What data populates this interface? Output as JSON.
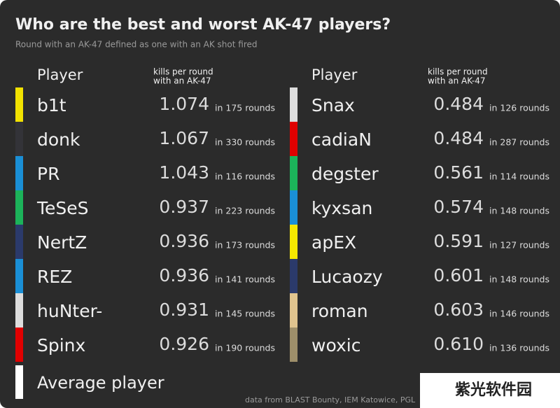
{
  "title": "Who are the best and worst AK-47 players?",
  "subtitle": "Round with an AK-47 defined as one with an AK shot fired",
  "tables": [
    {
      "header": {
        "player": "Player",
        "metric": [
          "kills per round",
          "with an AK-47"
        ]
      },
      "rows": [
        {
          "name": "b1t",
          "kpr": "1.074",
          "rounds": "in 175 rounds",
          "color": "#f2e200"
        },
        {
          "name": "donk",
          "kpr": "1.067",
          "rounds": "in 330 rounds",
          "color": "#333338"
        },
        {
          "name": "PR",
          "kpr": "1.043",
          "rounds": "in 116 rounds",
          "color": "#1a8fd6"
        },
        {
          "name": "TeSeS",
          "kpr": "0.937",
          "rounds": "in 223 rounds",
          "color": "#1cb35a"
        },
        {
          "name": "NertZ",
          "kpr": "0.936",
          "rounds": "in 173 rounds",
          "color": "#2b3a6b"
        },
        {
          "name": "REZ",
          "kpr": "0.936",
          "rounds": "in 141 rounds",
          "color": "#1a8fd6"
        },
        {
          "name": "huNter-",
          "kpr": "0.931",
          "rounds": "in 145 rounds",
          "color": "#dddddd"
        },
        {
          "name": "Spinx",
          "kpr": "0.926",
          "rounds": "in 190 rounds",
          "color": "#e00000"
        }
      ]
    },
    {
      "header": {
        "player": "Player",
        "metric": [
          "kills per round",
          "with an AK-47"
        ]
      },
      "rows": [
        {
          "name": "Snax",
          "kpr": "0.484",
          "rounds": "in 126 rounds",
          "color": "#dddddd"
        },
        {
          "name": "cadiaN",
          "kpr": "0.484",
          "rounds": "in 287 rounds",
          "color": "#e00000"
        },
        {
          "name": "degster",
          "kpr": "0.561",
          "rounds": "in 114 rounds",
          "color": "#1cb35a"
        },
        {
          "name": "kyxsan",
          "kpr": "0.574",
          "rounds": "in 148 rounds",
          "color": "#1a8fd6"
        },
        {
          "name": "apEX",
          "kpr": "0.591",
          "rounds": "in 127 rounds",
          "color": "#f5e800"
        },
        {
          "name": "Lucaozy",
          "kpr": "0.601",
          "rounds": "in 148 rounds",
          "color": "#2b3a6b"
        },
        {
          "name": "roman",
          "kpr": "0.603",
          "rounds": "in 146 rounds",
          "color": "#e0c48f"
        },
        {
          "name": "woxic",
          "kpr": "0.610",
          "rounds": "in 136 rounds",
          "color": "#9e8f6a"
        }
      ]
    }
  ],
  "legend": {
    "label": "Average player",
    "color": "#ffffff"
  },
  "source": "data from BLAST Bounty, IEM Katowice, PGL",
  "watermark": "紫光软件园"
}
